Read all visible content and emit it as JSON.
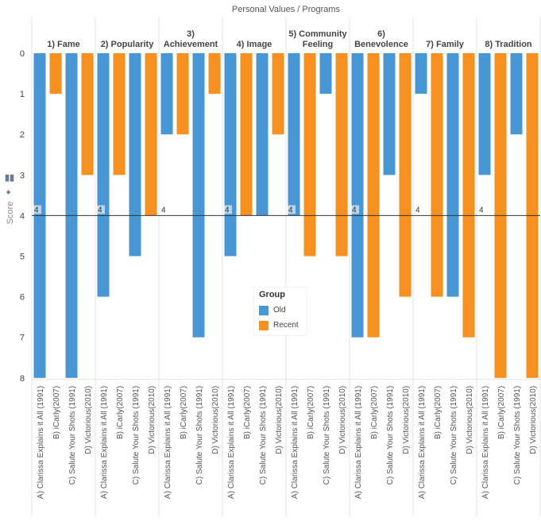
{
  "chart_data": {
    "type": "bar",
    "title": "Personal Values  /  Programs",
    "ylabel": "Score",
    "y_axis_reversed": true,
    "ylim": [
      0,
      8
    ],
    "yticks": [
      0,
      1,
      2,
      3,
      4,
      5,
      6,
      7,
      8
    ],
    "reference_line": {
      "value": 4,
      "label": "4"
    },
    "legend": {
      "title": "Group",
      "position": "center",
      "entries": [
        {
          "name": "Old",
          "color": "#4896d4"
        },
        {
          "name": "Recent",
          "color": "#f7901e"
        }
      ]
    },
    "programs": [
      {
        "label": "A) Clarissa Explains it All (1991)",
        "group": "Old"
      },
      {
        "label": "B) iCarly(2007)",
        "group": "Recent"
      },
      {
        "label": "C) Salute Your Shots (1991)",
        "group": "Old"
      },
      {
        "label": "D) Victorious(2010)",
        "group": "Recent"
      }
    ],
    "panels": [
      {
        "title": "1) Fame",
        "values": [
          8,
          1,
          8,
          3
        ]
      },
      {
        "title": "2) Popularity",
        "values": [
          6,
          3,
          5,
          4
        ]
      },
      {
        "title": "3)\nAchievement",
        "values": [
          2,
          2,
          7,
          1
        ]
      },
      {
        "title": "4) Image",
        "values": [
          5,
          4,
          4,
          2
        ]
      },
      {
        "title": "5) Community\nFeeling",
        "values": [
          4,
          5,
          1,
          5
        ]
      },
      {
        "title": "6)\nBenevolence",
        "values": [
          7,
          7,
          3,
          6
        ]
      },
      {
        "title": "7) Family",
        "values": [
          1,
          6,
          6,
          7
        ]
      },
      {
        "title": "8) Tradition",
        "values": [
          3,
          8,
          2,
          8
        ]
      }
    ]
  },
  "ui": {
    "bar_chart_icon": "bar-chart-icon",
    "pin_icon": "pin-icon"
  }
}
